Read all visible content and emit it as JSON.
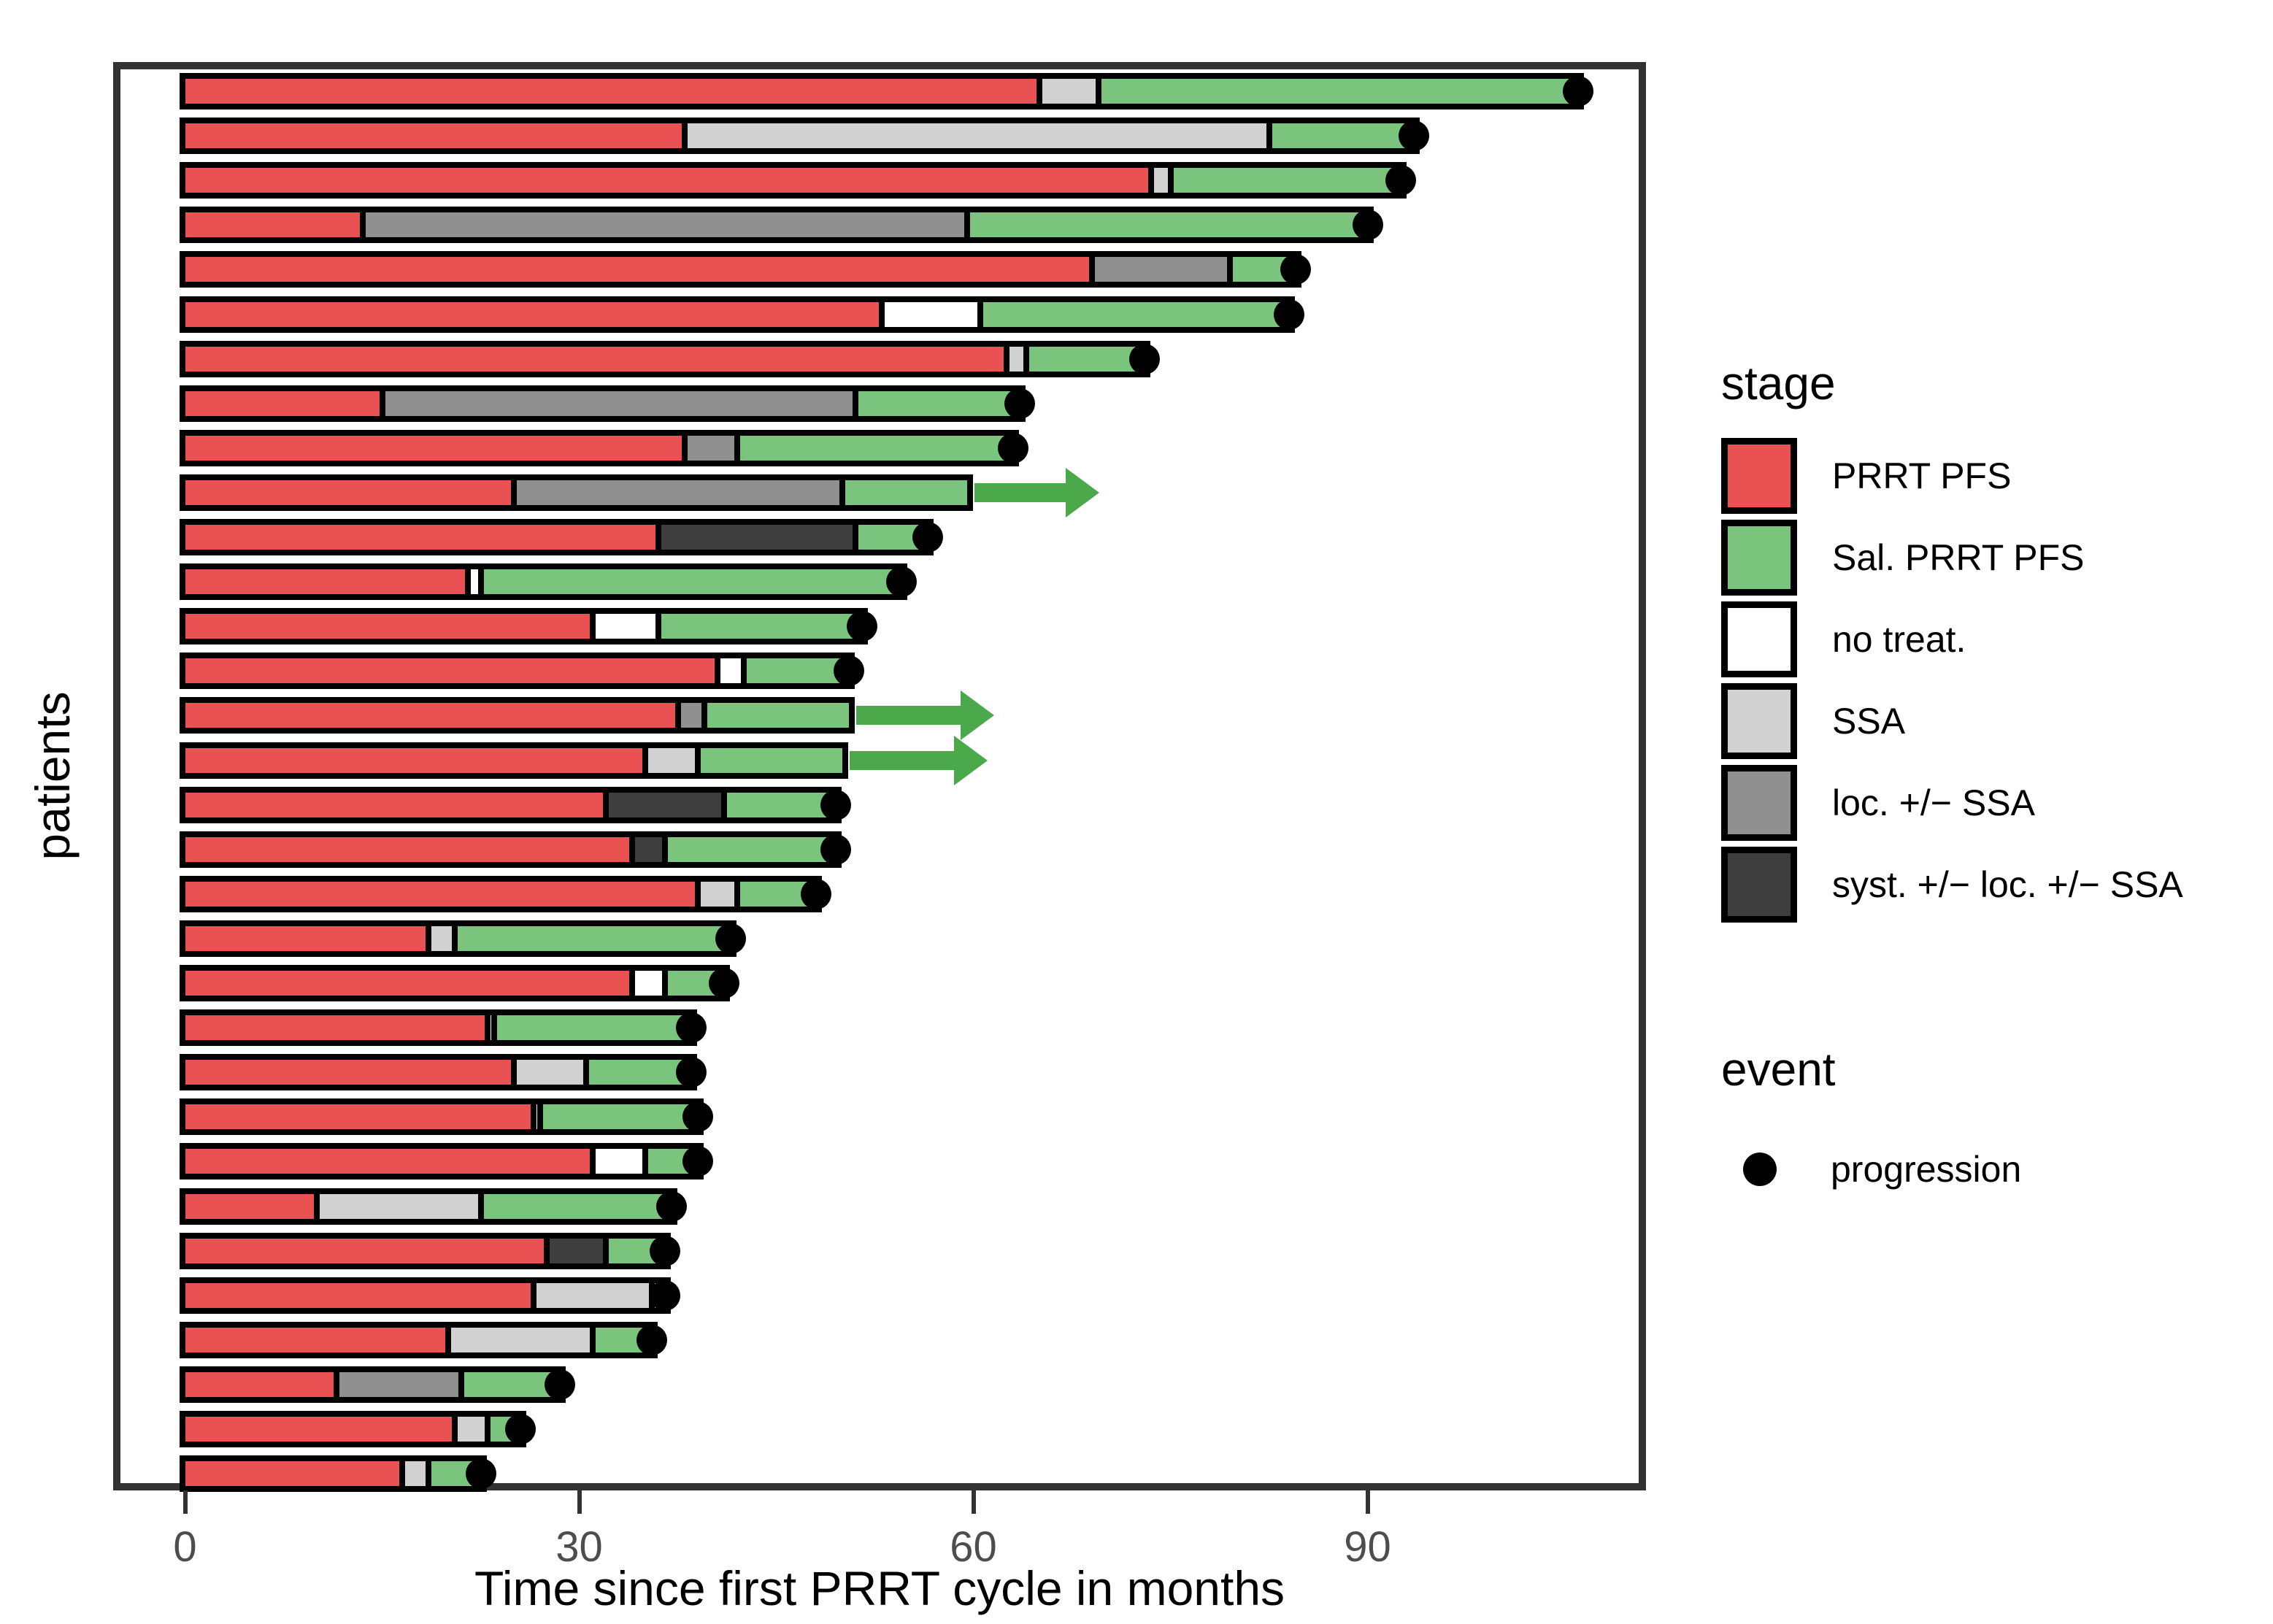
{
  "chart_data": {
    "type": "bar",
    "subtype": "swimmer-plot",
    "xlabel": "Time since first PRRT cycle in months",
    "ylabel": "patients",
    "x_ticks": [
      0,
      30,
      60,
      90
    ],
    "xlim": [
      -5.5,
      111
    ],
    "grid": "off",
    "legend_position": "right",
    "colors": {
      "panel_border": "#333333",
      "tick_label": "#4d4d4d",
      "bar_outline": "#000000",
      "arrow_green": "#4BA84B"
    },
    "legend": {
      "stage_title": "stage",
      "stages": [
        {
          "label": "PRRT PFS",
          "color": "#E95152"
        },
        {
          "label": "Sal. PRRT PFS",
          "color": "#7BC47D"
        },
        {
          "label": "no treat.",
          "color": "#FFFFFF"
        },
        {
          "label": "SSA",
          "color": "#D1D1D1"
        },
        {
          "label": "loc. +/− SSA",
          "color": "#8F8F8F"
        },
        {
          "label": "syst. +/− loc. +/− SSA",
          "color": "#3E3E3E"
        }
      ],
      "event_title": "event",
      "events": [
        {
          "label": "progression",
          "marker": "filled-circle",
          "color": "#000000"
        }
      ]
    },
    "patients": [
      {
        "segments": [
          {
            "stage": "PRRT PFS",
            "start": 0,
            "end": 65
          },
          {
            "stage": "SSA",
            "start": 65,
            "end": 69.5
          },
          {
            "stage": "Sal. PRRT PFS",
            "start": 69.5,
            "end": 106
          }
        ],
        "event": "progression"
      },
      {
        "segments": [
          {
            "stage": "PRRT PFS",
            "start": 0,
            "end": 38
          },
          {
            "stage": "SSA",
            "start": 38,
            "end": 82.5
          },
          {
            "stage": "Sal. PRRT PFS",
            "start": 82.5,
            "end": 93.5
          }
        ],
        "event": "progression"
      },
      {
        "segments": [
          {
            "stage": "PRRT PFS",
            "start": 0,
            "end": 73.5
          },
          {
            "stage": "SSA",
            "start": 73.5,
            "end": 75
          },
          {
            "stage": "Sal. PRRT PFS",
            "start": 75,
            "end": 92.5
          }
        ],
        "event": "progression"
      },
      {
        "segments": [
          {
            "stage": "PRRT PFS",
            "start": 0,
            "end": 13.5
          },
          {
            "stage": "loc. +/− SSA",
            "start": 13.5,
            "end": 59.5
          },
          {
            "stage": "Sal. PRRT PFS",
            "start": 59.5,
            "end": 90
          }
        ],
        "event": "progression"
      },
      {
        "segments": [
          {
            "stage": "PRRT PFS",
            "start": 0,
            "end": 69
          },
          {
            "stage": "loc. +/− SSA",
            "start": 69,
            "end": 79.5
          },
          {
            "stage": "Sal. PRRT PFS",
            "start": 79.5,
            "end": 84.5
          }
        ],
        "event": "progression"
      },
      {
        "segments": [
          {
            "stage": "PRRT PFS",
            "start": 0,
            "end": 53
          },
          {
            "stage": "no treat.",
            "start": 53,
            "end": 60.5
          },
          {
            "stage": "Sal. PRRT PFS",
            "start": 60.5,
            "end": 84
          }
        ],
        "event": "progression"
      },
      {
        "segments": [
          {
            "stage": "PRRT PFS",
            "start": 0,
            "end": 62.5
          },
          {
            "stage": "SSA",
            "start": 62.5,
            "end": 64
          },
          {
            "stage": "Sal. PRRT PFS",
            "start": 64,
            "end": 73
          }
        ],
        "event": "progression"
      },
      {
        "segments": [
          {
            "stage": "PRRT PFS",
            "start": 0,
            "end": 15
          },
          {
            "stage": "loc. +/− SSA",
            "start": 15,
            "end": 51
          },
          {
            "stage": "Sal. PRRT PFS",
            "start": 51,
            "end": 63.5
          }
        ],
        "event": "progression"
      },
      {
        "segments": [
          {
            "stage": "PRRT PFS",
            "start": 0,
            "end": 38
          },
          {
            "stage": "loc. +/− SSA",
            "start": 38,
            "end": 42
          },
          {
            "stage": "Sal. PRRT PFS",
            "start": 42,
            "end": 63
          }
        ],
        "event": "progression"
      },
      {
        "segments": [
          {
            "stage": "PRRT PFS",
            "start": 0,
            "end": 25
          },
          {
            "stage": "loc. +/− SSA",
            "start": 25,
            "end": 50
          },
          {
            "stage": "Sal. PRRT PFS",
            "start": 50,
            "end": 59.5
          }
        ],
        "event": null,
        "arrow_to": 69
      },
      {
        "segments": [
          {
            "stage": "PRRT PFS",
            "start": 0,
            "end": 36
          },
          {
            "stage": "syst. +/− loc. +/− SSA",
            "start": 36,
            "end": 51
          },
          {
            "stage": "Sal. PRRT PFS",
            "start": 51,
            "end": 56.5
          }
        ],
        "event": "progression"
      },
      {
        "segments": [
          {
            "stage": "PRRT PFS",
            "start": 0,
            "end": 21.5
          },
          {
            "stage": "no treat.",
            "start": 21.5,
            "end": 22.5
          },
          {
            "stage": "Sal. PRRT PFS",
            "start": 22.5,
            "end": 54.5
          }
        ],
        "event": "progression"
      },
      {
        "segments": [
          {
            "stage": "PRRT PFS",
            "start": 0,
            "end": 31
          },
          {
            "stage": "no treat.",
            "start": 31,
            "end": 36
          },
          {
            "stage": "Sal. PRRT PFS",
            "start": 36,
            "end": 51.5
          }
        ],
        "event": "progression"
      },
      {
        "segments": [
          {
            "stage": "PRRT PFS",
            "start": 0,
            "end": 40.5
          },
          {
            "stage": "no treat.",
            "start": 40.5,
            "end": 42.5
          },
          {
            "stage": "Sal. PRRT PFS",
            "start": 42.5,
            "end": 50.5
          }
        ],
        "event": "progression"
      },
      {
        "segments": [
          {
            "stage": "PRRT PFS",
            "start": 0,
            "end": 37.5
          },
          {
            "stage": "loc. +/− SSA",
            "start": 37.5,
            "end": 39.5
          },
          {
            "stage": "Sal. PRRT PFS",
            "start": 39.5,
            "end": 50.5
          }
        ],
        "event": null,
        "arrow_to": 61
      },
      {
        "segments": [
          {
            "stage": "PRRT PFS",
            "start": 0,
            "end": 35
          },
          {
            "stage": "SSA",
            "start": 35,
            "end": 39
          },
          {
            "stage": "Sal. PRRT PFS",
            "start": 39,
            "end": 50
          }
        ],
        "event": null,
        "arrow_to": 60.5
      },
      {
        "segments": [
          {
            "stage": "PRRT PFS",
            "start": 0,
            "end": 32
          },
          {
            "stage": "syst. +/− loc. +/− SSA",
            "start": 32,
            "end": 41
          },
          {
            "stage": "Sal. PRRT PFS",
            "start": 41,
            "end": 49.5
          }
        ],
        "event": "progression"
      },
      {
        "segments": [
          {
            "stage": "PRRT PFS",
            "start": 0,
            "end": 34
          },
          {
            "stage": "syst. +/− loc. +/− SSA",
            "start": 34,
            "end": 36.5
          },
          {
            "stage": "Sal. PRRT PFS",
            "start": 36.5,
            "end": 49.5
          }
        ],
        "event": "progression"
      },
      {
        "segments": [
          {
            "stage": "PRRT PFS",
            "start": 0,
            "end": 39
          },
          {
            "stage": "SSA",
            "start": 39,
            "end": 42
          },
          {
            "stage": "Sal. PRRT PFS",
            "start": 42,
            "end": 48
          }
        ],
        "event": "progression"
      },
      {
        "segments": [
          {
            "stage": "PRRT PFS",
            "start": 0,
            "end": 18.5
          },
          {
            "stage": "SSA",
            "start": 18.5,
            "end": 20.5
          },
          {
            "stage": "Sal. PRRT PFS",
            "start": 20.5,
            "end": 41.5
          }
        ],
        "event": "progression"
      },
      {
        "segments": [
          {
            "stage": "PRRT PFS",
            "start": 0,
            "end": 34
          },
          {
            "stage": "no treat.",
            "start": 34,
            "end": 36.5
          },
          {
            "stage": "Sal. PRRT PFS",
            "start": 36.5,
            "end": 41
          }
        ],
        "event": "progression"
      },
      {
        "segments": [
          {
            "stage": "PRRT PFS",
            "start": 0,
            "end": 23
          },
          {
            "stage": "no treat.",
            "start": 23,
            "end": 23.5
          },
          {
            "stage": "Sal. PRRT PFS",
            "start": 23.5,
            "end": 38.5
          }
        ],
        "event": "progression"
      },
      {
        "segments": [
          {
            "stage": "PRRT PFS",
            "start": 0,
            "end": 25
          },
          {
            "stage": "SSA",
            "start": 25,
            "end": 30.5
          },
          {
            "stage": "Sal. PRRT PFS",
            "start": 30.5,
            "end": 38.5
          }
        ],
        "event": "progression"
      },
      {
        "segments": [
          {
            "stage": "PRRT PFS",
            "start": 0,
            "end": 26.5
          },
          {
            "stage": "no treat.",
            "start": 26.5,
            "end": 27
          },
          {
            "stage": "Sal. PRRT PFS",
            "start": 27,
            "end": 39
          }
        ],
        "event": "progression"
      },
      {
        "segments": [
          {
            "stage": "PRRT PFS",
            "start": 0,
            "end": 31
          },
          {
            "stage": "no treat.",
            "start": 31,
            "end": 35
          },
          {
            "stage": "Sal. PRRT PFS",
            "start": 35,
            "end": 39
          }
        ],
        "event": "progression"
      },
      {
        "segments": [
          {
            "stage": "PRRT PFS",
            "start": 0,
            "end": 10
          },
          {
            "stage": "SSA",
            "start": 10,
            "end": 22.5
          },
          {
            "stage": "Sal. PRRT PFS",
            "start": 22.5,
            "end": 37
          }
        ],
        "event": "progression"
      },
      {
        "segments": [
          {
            "stage": "PRRT PFS",
            "start": 0,
            "end": 27.5
          },
          {
            "stage": "syst. +/− loc. +/− SSA",
            "start": 27.5,
            "end": 32
          },
          {
            "stage": "Sal. PRRT PFS",
            "start": 32,
            "end": 36.5
          }
        ],
        "event": "progression"
      },
      {
        "segments": [
          {
            "stage": "PRRT PFS",
            "start": 0,
            "end": 26.5
          },
          {
            "stage": "SSA",
            "start": 26.5,
            "end": 35.5
          },
          {
            "stage": "Sal. PRRT PFS",
            "start": 35.5,
            "end": 36.5
          }
        ],
        "event": "progression"
      },
      {
        "segments": [
          {
            "stage": "PRRT PFS",
            "start": 0,
            "end": 20
          },
          {
            "stage": "SSA",
            "start": 20,
            "end": 31
          },
          {
            "stage": "Sal. PRRT PFS",
            "start": 31,
            "end": 35.5
          }
        ],
        "event": "progression"
      },
      {
        "segments": [
          {
            "stage": "PRRT PFS",
            "start": 0,
            "end": 11.5
          },
          {
            "stage": "loc. +/− SSA",
            "start": 11.5,
            "end": 21
          },
          {
            "stage": "Sal. PRRT PFS",
            "start": 21,
            "end": 28.5
          }
        ],
        "event": "progression"
      },
      {
        "segments": [
          {
            "stage": "PRRT PFS",
            "start": 0,
            "end": 20.5
          },
          {
            "stage": "SSA",
            "start": 20.5,
            "end": 23
          },
          {
            "stage": "Sal. PRRT PFS",
            "start": 23,
            "end": 25.5
          }
        ],
        "event": "progression"
      },
      {
        "segments": [
          {
            "stage": "PRRT PFS",
            "start": 0,
            "end": 16.5
          },
          {
            "stage": "SSA",
            "start": 16.5,
            "end": 18.5
          },
          {
            "stage": "Sal. PRRT PFS",
            "start": 18.5,
            "end": 22.5
          }
        ],
        "event": "progression"
      }
    ]
  }
}
